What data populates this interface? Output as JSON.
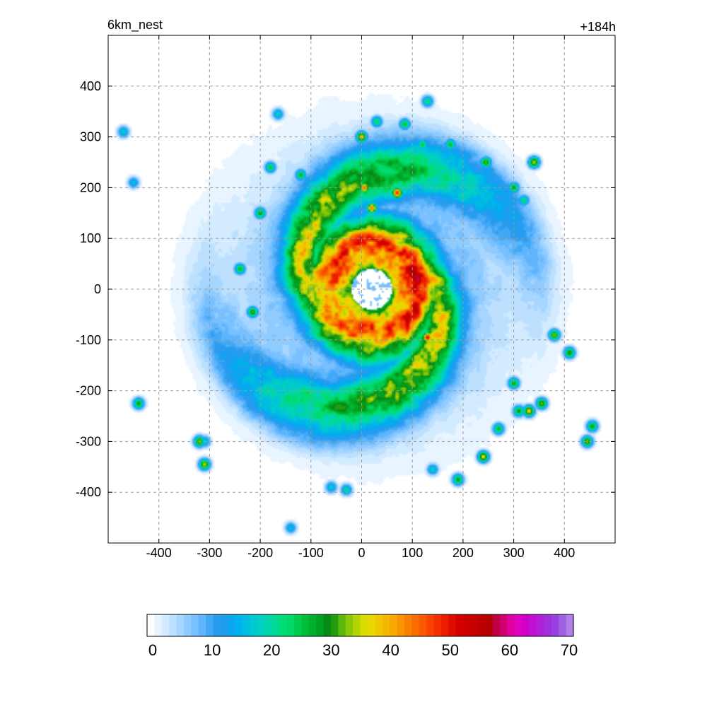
{
  "chart_data": {
    "type": "heatmap",
    "title_left": "6km_nest",
    "title_right": "+184h",
    "xlabel": "",
    "ylabel": "",
    "xlim": [
      -500,
      500
    ],
    "ylim": [
      -500,
      500
    ],
    "x_ticks": [
      -400,
      -300,
      -200,
      -100,
      0,
      100,
      200,
      300,
      400
    ],
    "y_ticks": [
      400,
      300,
      200,
      100,
      0,
      -100,
      -200,
      -300,
      -400
    ],
    "x_tick_labels": [
      "-400",
      "-300",
      "-200",
      "-100",
      "0",
      "100",
      "200",
      "300",
      "400"
    ],
    "y_tick_labels": [
      "400",
      "300",
      "200",
      "100",
      "0",
      "-100",
      "-200",
      "-300",
      "-400"
    ],
    "grid": true,
    "grid_style": "dashed",
    "colorbar": {
      "min": 0,
      "max": 70,
      "tick_values": [
        0,
        10,
        20,
        30,
        40,
        50,
        60,
        70
      ],
      "tick_labels": [
        "0",
        "10",
        "20",
        "30",
        "40",
        "50",
        "60",
        "70"
      ],
      "colors": [
        "#ffffff",
        "#e8f4ff",
        "#d2ebff",
        "#bde0ff",
        "#a6d6ff",
        "#8fcbff",
        "#78c0ff",
        "#5fb5fb",
        "#40a8f5",
        "#2a9cf0",
        "#1f9ef0",
        "#0aa6f0",
        "#00b2ea",
        "#00bde0",
        "#00c8d2",
        "#00d0c0",
        "#00d5aa",
        "#00d992",
        "#00dc78",
        "#00d868",
        "#00cc50",
        "#00be3c",
        "#00b02c",
        "#00a020",
        "#068c14",
        "#209c10",
        "#5cb80c",
        "#8cc808",
        "#b4d404",
        "#d8dc00",
        "#e8d800",
        "#f0c800",
        "#f5b800",
        "#f8a800",
        "#f89400",
        "#f88000",
        "#f86c00",
        "#f85a00",
        "#f84400",
        "#f43000",
        "#ec1c00",
        "#e00c00",
        "#d40000",
        "#cc0000",
        "#c40000",
        "#bc0000",
        "#b40000",
        "#c00040",
        "#d00070",
        "#e000a0",
        "#e000c0",
        "#d000c8",
        "#c010d0",
        "#b020d8",
        "#a030dc",
        "#9840e0",
        "#a060e0",
        "#b080e8"
      ]
    },
    "field": {
      "description_units": "km",
      "eye_center": [
        20,
        0
      ],
      "eye_radius": 40,
      "core_peak": 42,
      "eyewall_peak": 52,
      "rainband_peak": 28,
      "outer_extent": 320,
      "spiral_arms": 2,
      "storm_cells": [
        [
          0,
          300,
          40
        ],
        [
          30,
          330,
          25
        ],
        [
          85,
          325,
          28
        ],
        [
          120,
          285,
          26
        ],
        [
          245,
          250,
          33
        ],
        [
          340,
          250,
          36
        ],
        [
          300,
          200,
          30
        ],
        [
          320,
          175,
          24
        ],
        [
          130,
          370,
          24
        ],
        [
          175,
          285,
          28
        ],
        [
          5,
          200,
          46
        ],
        [
          70,
          190,
          50
        ],
        [
          20,
          160,
          44
        ],
        [
          -120,
          225,
          28
        ],
        [
          -180,
          240,
          26
        ],
        [
          -200,
          150,
          30
        ],
        [
          -240,
          40,
          28
        ],
        [
          -215,
          -45,
          32
        ],
        [
          -320,
          -300,
          34
        ],
        [
          -310,
          -345,
          36
        ],
        [
          -440,
          -225,
          30
        ],
        [
          -470,
          310,
          20
        ],
        [
          -165,
          345,
          20
        ],
        [
          -140,
          -470,
          18
        ],
        [
          380,
          -90,
          34
        ],
        [
          410,
          -125,
          32
        ],
        [
          300,
          -185,
          30
        ],
        [
          330,
          -240,
          40
        ],
        [
          355,
          -225,
          34
        ],
        [
          270,
          -275,
          28
        ],
        [
          240,
          -330,
          38
        ],
        [
          190,
          -375,
          30
        ],
        [
          445,
          -300,
          34
        ],
        [
          455,
          -270,
          30
        ],
        [
          140,
          -355,
          20
        ],
        [
          -30,
          -395,
          22
        ],
        [
          -60,
          -390,
          20
        ],
        [
          -450,
          210,
          18
        ],
        [
          -310,
          -300,
          20
        ],
        [
          310,
          -240,
          30
        ],
        [
          130,
          -95,
          52
        ],
        [
          120,
          40,
          48
        ],
        [
          125,
          -20,
          46
        ]
      ]
    }
  }
}
